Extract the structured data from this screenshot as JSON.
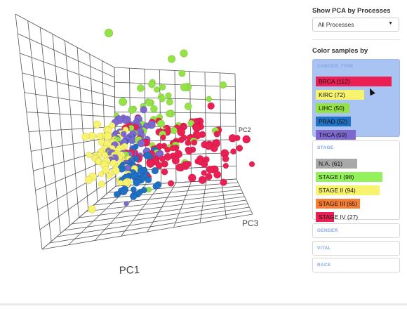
{
  "plot": {
    "axis_labels": {
      "pc1": "PC1",
      "pc2": "PC2",
      "pc3": "PC3"
    }
  },
  "sidebar": {
    "show_pca_title": "Show PCA by Processes",
    "process_select": {
      "selected": "All Processes"
    },
    "color_by_title": "Color samples by",
    "panels": [
      {
        "title": "CANCER_TYPE",
        "active": true,
        "items": [
          {
            "label": "BRCA (112)",
            "color": "#ea1f54",
            "count": 112
          },
          {
            "label": "KIRC (72)",
            "color": "#f7f36c",
            "count": 72
          },
          {
            "label": "LIHC (50)",
            "color": "#93e246",
            "count": 50
          },
          {
            "label": "PRAD (52)",
            "color": "#2070c4",
            "count": 52
          },
          {
            "label": "THCA (59)",
            "color": "#7c68cf",
            "count": 59
          }
        ]
      },
      {
        "title": "STAGE",
        "active": false,
        "items": [
          {
            "label": "N.A. (61)",
            "color": "#a8a8a8",
            "count": 61
          },
          {
            "label": "STAGE I (98)",
            "color": "#93f25c",
            "count": 98
          },
          {
            "label": "STAGE II (94)",
            "color": "#f7f36c",
            "count": 94
          },
          {
            "label": "STAGE III (65)",
            "color": "#f77f35",
            "count": 65
          },
          {
            "label": "STAGE IV (27)",
            "color": "#ea1f54",
            "count": 27
          }
        ]
      },
      {
        "title": "GENDER",
        "active": false,
        "items": []
      },
      {
        "title": "VITAL",
        "active": false,
        "items": []
      },
      {
        "title": "RACE",
        "active": false,
        "items": []
      }
    ]
  }
}
